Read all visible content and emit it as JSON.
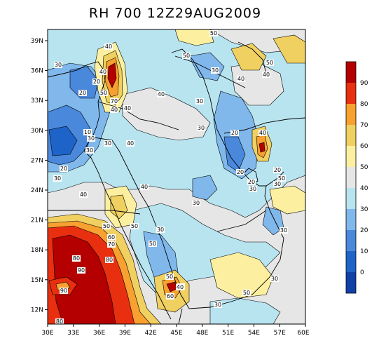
{
  "map": {
    "title": "RH 700 12Z29AUG2009",
    "lon_ticks": [
      "30E",
      "33E",
      "36E",
      "39E",
      "42E",
      "45E",
      "48E",
      "51E",
      "54E",
      "57E",
      "60E"
    ],
    "lat_ticks": [
      "39N",
      "36N",
      "33N",
      "30N",
      "27N",
      "24N",
      "21N",
      "18N",
      "15N",
      "12N"
    ],
    "colorbar": {
      "levels": [
        "90",
        "80",
        "70",
        "60",
        "50",
        "40",
        "30",
        "20",
        "10",
        "0"
      ],
      "colors": [
        "#b40000",
        "#e83010",
        "#f8a030",
        "#f0d060",
        "#fcf0a0",
        "#e6e6e6",
        "#b8e4f0",
        "#80b8ec",
        "#4a88dc",
        "#1e64c8",
        "#1040a8"
      ]
    },
    "contour_labels": [
      "40",
      "50",
      "30",
      "40",
      "40",
      "20",
      "30",
      "50",
      "70",
      "40",
      "40",
      "30",
      "10",
      "30",
      "30",
      "20",
      "20",
      "40",
      "20",
      "30",
      "40",
      "30",
      "40",
      "30",
      "30",
      "50",
      "40",
      "20",
      "30",
      "50",
      "50",
      "50",
      "60",
      "70",
      "30",
      "30",
      "40",
      "80",
      "90",
      "80",
      "90",
      "80",
      "50",
      "40",
      "50",
      "20",
      "30",
      "40",
      "50",
      "40",
      "30",
      "30",
      "20",
      "50",
      "60"
    ]
  }
}
